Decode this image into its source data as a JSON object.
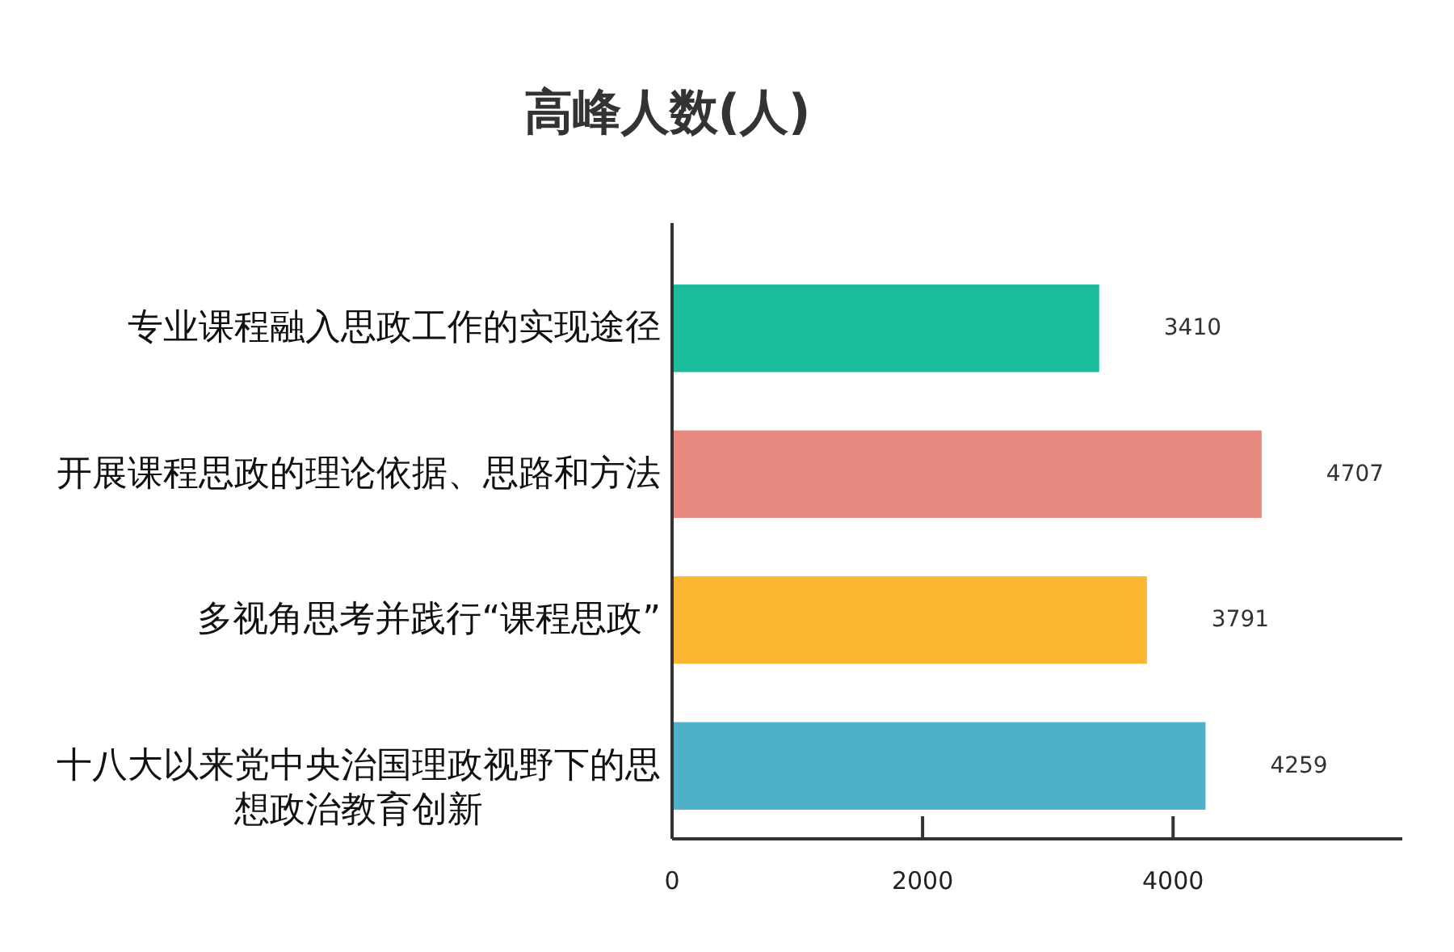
{
  "chart_data": {
    "type": "bar",
    "orientation": "horizontal",
    "title": "高峰人数(人)",
    "categories": [
      "专业课程融入思政工作的实现途径",
      "开展课程思政的理论依据、思路和方法",
      "多视角思考并践行“课程思政”",
      "十八大以来党中央治国理政视野下的思想政治教育创新"
    ],
    "values": [
      3410,
      4707,
      3791,
      4259
    ],
    "colors": [
      "#1abc9c",
      "#e8897f",
      "#fbb731",
      "#4eb0c9"
    ],
    "xlim": [
      0,
      5830
    ],
    "xticks": [
      0,
      2000,
      4000
    ],
    "data_labels": true
  }
}
